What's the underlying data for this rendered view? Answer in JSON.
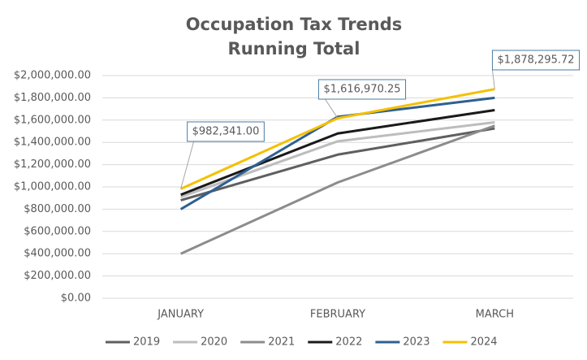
{
  "chart_data": {
    "type": "line",
    "title": "Occupation Tax Trends",
    "subtitle": "Running Total",
    "categories": [
      "JANUARY",
      "FEBRUARY",
      "MARCH"
    ],
    "series": [
      {
        "name": "2019",
        "color": "#5f5f5f",
        "values": [
          880000,
          1290000,
          1525000
        ]
      },
      {
        "name": "2020",
        "color": "#bdbdbd",
        "values": [
          910000,
          1410000,
          1580000
        ]
      },
      {
        "name": "2021",
        "color": "#8c8c8c",
        "values": [
          400000,
          1040000,
          1550000
        ]
      },
      {
        "name": "2022",
        "color": "#1a1a1a",
        "values": [
          930000,
          1480000,
          1690000
        ]
      },
      {
        "name": "2023",
        "color": "#2e6092",
        "values": [
          800000,
          1630000,
          1800000
        ]
      },
      {
        "name": "2024",
        "color": "#f5c000",
        "values": [
          982341,
          1616970.25,
          1878295.72
        ],
        "value_labels": [
          "$982,341.00",
          "$1,616,970.25",
          "$1,878,295.72"
        ]
      }
    ],
    "ylim": [
      0,
      2000000
    ],
    "yticks": [
      {
        "value": 0,
        "label": "$0.00"
      },
      {
        "value": 200000,
        "label": "$200,000.00"
      },
      {
        "value": 400000,
        "label": "$400,000.00"
      },
      {
        "value": 600000,
        "label": "$600,000.00"
      },
      {
        "value": 800000,
        "label": "$800,000.00"
      },
      {
        "value": 1000000,
        "label": "$1,000,000.00"
      },
      {
        "value": 1200000,
        "label": "$1,200,000.00"
      },
      {
        "value": 1400000,
        "label": "$1,400,000.00"
      },
      {
        "value": 1600000,
        "label": "$1,600,000.00"
      },
      {
        "value": 1800000,
        "label": "$1,800,000.00"
      },
      {
        "value": 2000000,
        "label": "$2,000,000.00"
      }
    ],
    "grid": true,
    "legend": "bottom"
  }
}
